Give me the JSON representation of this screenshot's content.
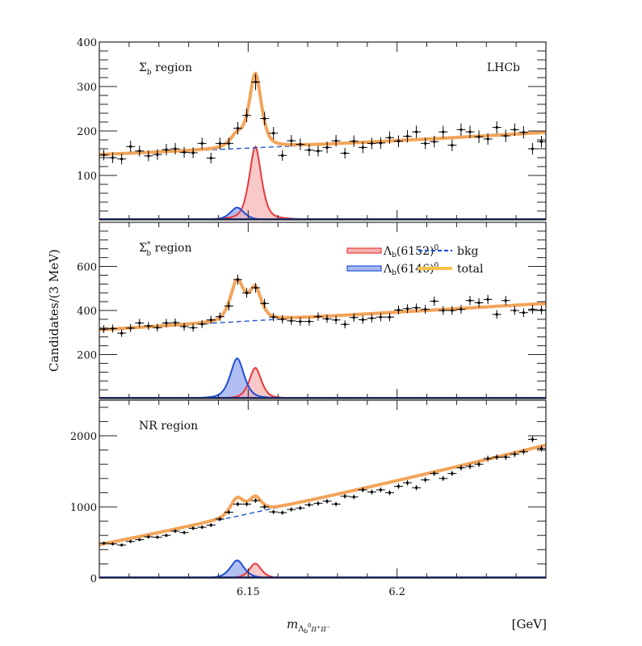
{
  "chart_data": {
    "type": "line",
    "experiment_label": "LHCb",
    "xlabel": "m_{Λb0 π+ π−}",
    "xlabel_main": "m",
    "xlabel_sub": "Λ",
    "xlabel_sub2": "b",
    "xlabel_sup2": "0",
    "xlabel_rest": "π⁺π⁻",
    "xunit": "[GeV]",
    "ylabel": "Candidates/(3 MeV)",
    "xlim": [
      6.1,
      6.25
    ],
    "x_ticks": [
      {
        "value": 6.15,
        "label": "6.15"
      },
      {
        "value": 6.2,
        "label": "6.2"
      }
    ],
    "bin_width": 0.003,
    "grid": false,
    "legend": {
      "placement": "middle-panel-top-right",
      "entries": [
        {
          "key": "sig6152",
          "label_main": "Λ",
          "label_sub": "b",
          "label_rest": "(6152)",
          "label_sup": "0",
          "style": "filled",
          "color": "#e8393a",
          "fill": "#f6b0b0"
        },
        {
          "key": "sig6146",
          "label_main": "Λ",
          "label_sub": "b",
          "label_rest": "(6146)",
          "label_sup": "0",
          "style": "filled",
          "color": "#1f4fd8",
          "fill": "#a9b8f2"
        },
        {
          "key": "bkg",
          "label_main": "bkg",
          "style": "dashed",
          "color": "#1f55d0"
        },
        {
          "key": "total",
          "label_main": "total",
          "style": "thick",
          "color": "#f7c24a"
        }
      ]
    },
    "colors": {
      "total": "#f2a45a",
      "bkg": "#1f55d0",
      "sig6152": "#e8393a",
      "sig6152_fill": "#f6b0b0",
      "sig6146": "#1f4fd8",
      "sig6146_fill": "#a9b8f2",
      "data": "#000000"
    },
    "panels": [
      {
        "label_main": "Σ",
        "label_sub": "b",
        "label_sup": "",
        "label_rest": " region",
        "ylim": [
          0,
          400
        ],
        "y_ticks": [
          {
            "value": 100,
            "label": "100"
          },
          {
            "value": 200,
            "label": "200"
          },
          {
            "value": 300,
            "label": "300"
          },
          {
            "value": 400,
            "label": "400"
          }
        ],
        "bkg": {
          "at_low": 147,
          "at_high": 197,
          "curv": 10
        },
        "sig6152": {
          "mass": 6.1524,
          "peak": 165,
          "width": 0.0022
        },
        "sig6146": {
          "mass": 6.1463,
          "peak": 28,
          "width": 0.0025
        },
        "data": [
          146,
          140,
          137,
          165,
          155,
          144,
          147,
          158,
          160,
          152,
          151,
          172,
          139,
          172,
          172,
          206,
          235,
          310,
          228,
          195,
          145,
          178,
          170,
          157,
          155,
          163,
          178,
          150,
          177,
          163,
          172,
          173,
          185,
          177,
          188,
          198,
          172,
          176,
          198,
          168,
          203,
          198,
          187,
          182,
          208,
          189,
          203,
          197,
          160,
          176
        ],
        "errors": [
          12,
          12,
          12,
          13,
          12,
          12,
          12,
          13,
          13,
          12,
          12,
          13,
          12,
          13,
          13,
          14,
          15,
          18,
          15,
          14,
          12,
          13,
          13,
          13,
          12,
          13,
          13,
          12,
          13,
          13,
          13,
          13,
          14,
          13,
          14,
          14,
          13,
          13,
          14,
          13,
          14,
          14,
          14,
          13,
          14,
          14,
          14,
          14,
          13,
          13
        ]
      },
      {
        "label_main": "Σ",
        "label_sub": "b",
        "label_sup": "*",
        "label_rest": " region",
        "ylim": [
          0,
          800
        ],
        "y_ticks": [
          {
            "value": 200,
            "label": "200"
          },
          {
            "value": 400,
            "label": "400"
          },
          {
            "value": 600,
            "label": "600"
          }
        ],
        "bkg": {
          "at_low": 312,
          "at_high": 432,
          "curv": 0
        },
        "sig6152": {
          "mass": 6.1524,
          "peak": 140,
          "width": 0.0022
        },
        "sig6146": {
          "mass": 6.1463,
          "peak": 183,
          "width": 0.0025
        },
        "data": [
          315,
          318,
          297,
          320,
          343,
          330,
          322,
          343,
          345,
          327,
          322,
          338,
          357,
          372,
          420,
          540,
          480,
          503,
          432,
          370,
          360,
          353,
          350,
          350,
          372,
          362,
          357,
          337,
          368,
          358,
          365,
          370,
          370,
          402,
          408,
          412,
          405,
          442,
          400,
          400,
          405,
          445,
          435,
          450,
          382,
          445,
          400,
          390,
          405,
          402
        ],
        "errors": [
          18,
          18,
          17,
          18,
          19,
          18,
          18,
          19,
          19,
          18,
          18,
          18,
          19,
          19,
          20,
          23,
          22,
          22,
          21,
          19,
          19,
          19,
          19,
          19,
          19,
          19,
          19,
          18,
          19,
          19,
          19,
          19,
          19,
          20,
          20,
          20,
          20,
          21,
          20,
          20,
          20,
          21,
          21,
          21,
          20,
          21,
          20,
          20,
          20,
          20
        ]
      },
      {
        "label_main": "NR region",
        "label_sub": "",
        "label_sup": "",
        "label_rest": "",
        "ylim": [
          0,
          2500
        ],
        "y_ticks": [
          {
            "value": 0,
            "label": "0"
          },
          {
            "value": 1000,
            "label": "1000"
          },
          {
            "value": 2000,
            "label": "2000"
          }
        ],
        "bkg": {
          "at_low": 470,
          "at_high": 1870,
          "curv": 150
        },
        "sig6152": {
          "mass": 6.1524,
          "peak": 205,
          "width": 0.0022
        },
        "sig6146": {
          "mass": 6.1463,
          "peak": 250,
          "width": 0.0025
        },
        "data": [
          490,
          480,
          465,
          515,
          540,
          580,
          575,
          600,
          660,
          640,
          700,
          715,
          745,
          830,
          925,
          1040,
          1040,
          1090,
          1000,
          930,
          920,
          965,
          985,
          1030,
          1050,
          1080,
          1040,
          1150,
          1140,
          1240,
          1210,
          1240,
          1200,
          1290,
          1340,
          1270,
          1380,
          1470,
          1400,
          1470,
          1550,
          1570,
          1600,
          1680,
          1700,
          1700,
          1740,
          1775,
          1950,
          1820
        ],
        "errors": [
          22,
          22,
          21,
          23,
          23,
          24,
          24,
          24,
          26,
          25,
          26,
          27,
          27,
          29,
          30,
          32,
          32,
          33,
          32,
          30,
          30,
          31,
          31,
          32,
          32,
          33,
          32,
          34,
          34,
          35,
          35,
          35,
          35,
          36,
          37,
          36,
          37,
          38,
          37,
          38,
          39,
          40,
          40,
          41,
          41,
          41,
          42,
          42,
          44,
          43
        ]
      }
    ]
  }
}
